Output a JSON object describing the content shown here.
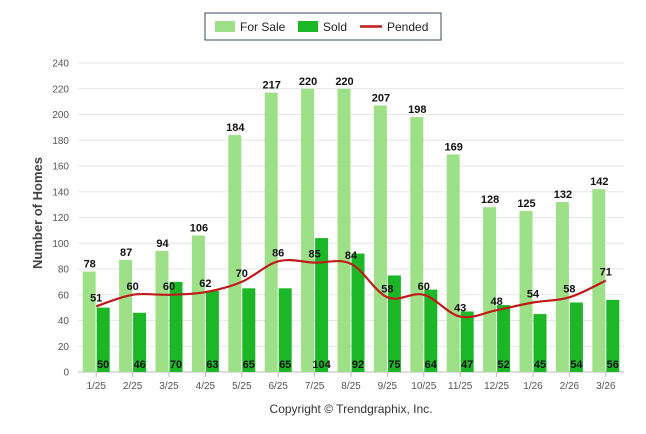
{
  "chart_data": {
    "type": "bar",
    "categories": [
      "1/25",
      "2/25",
      "3/25",
      "4/25",
      "5/25",
      "6/25",
      "7/25",
      "8/25",
      "9/25",
      "10/25",
      "11/25",
      "12/25",
      "1/26",
      "2/26",
      "3/26"
    ],
    "series": [
      {
        "name": "For Sale",
        "kind": "bar",
        "color": "#9de087",
        "values": [
          78,
          87,
          94,
          106,
          184,
          217,
          220,
          220,
          207,
          198,
          169,
          128,
          125,
          132,
          142
        ]
      },
      {
        "name": "Sold",
        "kind": "bar",
        "color": "#1cb726",
        "values": [
          50,
          46,
          70,
          63,
          65,
          65,
          104,
          92,
          75,
          64,
          47,
          52,
          45,
          54,
          56
        ]
      },
      {
        "name": "Pended",
        "kind": "line",
        "color": "#c01a1a",
        "values": [
          51,
          60,
          60,
          62,
          70,
          86,
          85,
          84,
          58,
          60,
          43,
          48,
          54,
          58,
          71
        ]
      }
    ],
    "ylabel": "Number of Homes",
    "xlabel": "",
    "ylim": [
      0,
      240
    ],
    "yticks": [
      0,
      20,
      40,
      60,
      80,
      100,
      120,
      140,
      160,
      180,
      200,
      220,
      240
    ],
    "legend_position": "top-center",
    "grid": true
  },
  "copyright": "Copyright © Trendgraphix, Inc."
}
